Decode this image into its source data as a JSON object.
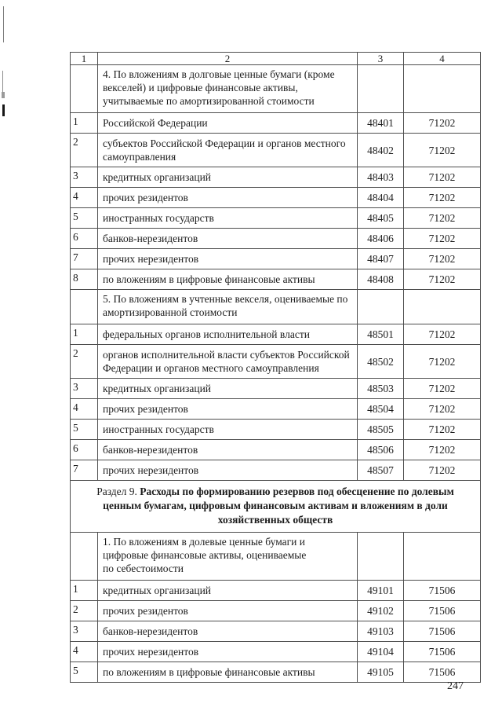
{
  "page": {
    "number": "247"
  },
  "colors": {
    "ink": "#1c1c1c",
    "border": "#4e4e4e",
    "background": "#ffffff"
  },
  "table": {
    "columns": [
      "1",
      "2",
      "3",
      "4"
    ],
    "body": [
      {
        "type": "subheader",
        "text": "4. По вложениям в долговые ценные бумаги (кроме\nвекселей) и цифровые финансовые активы,\nучитываемые по амортизированной стоимости"
      },
      {
        "type": "row",
        "num": "1",
        "label": "Российской Федерации",
        "col3": "48401",
        "col4": "71202"
      },
      {
        "type": "row",
        "num": "2",
        "label": "субъектов Российской Федерации и органов местного\nсамоуправления",
        "col3": "48402",
        "col4": "71202"
      },
      {
        "type": "row",
        "num": "3",
        "label": "кредитных организаций",
        "col3": "48403",
        "col4": "71202"
      },
      {
        "type": "row",
        "num": "4",
        "label": "прочих резидентов",
        "col3": "48404",
        "col4": "71202"
      },
      {
        "type": "row",
        "num": "5",
        "label": "иностранных государств",
        "col3": "48405",
        "col4": "71202"
      },
      {
        "type": "row",
        "num": "6",
        "label": "банков-нерезидентов",
        "col3": "48406",
        "col4": "71202"
      },
      {
        "type": "row",
        "num": "7",
        "label": "прочих нерезидентов",
        "col3": "48407",
        "col4": "71202"
      },
      {
        "type": "row",
        "num": "8",
        "label": "по вложениям в цифровые финансовые активы",
        "col3": "48408",
        "col4": "71202"
      },
      {
        "type": "subheader",
        "text": "5. По вложениям в учтенные векселя, оцениваемые по\nамортизированной стоимости"
      },
      {
        "type": "row",
        "num": "1",
        "label": "федеральных органов исполнительной власти",
        "col3": "48501",
        "col4": "71202"
      },
      {
        "type": "row",
        "num": "2",
        "label": "органов исполнительной власти субъектов Российской\nФедерации и органов местного самоуправления",
        "col3": "48502",
        "col4": "71202"
      },
      {
        "type": "row",
        "num": "3",
        "label": "кредитных организаций",
        "col3": "48503",
        "col4": "71202"
      },
      {
        "type": "row",
        "num": "4",
        "label": "прочих резидентов",
        "col3": "48504",
        "col4": "71202"
      },
      {
        "type": "row",
        "num": "5",
        "label": "иностранных государств",
        "col3": "48505",
        "col4": "71202"
      },
      {
        "type": "row",
        "num": "6",
        "label": "банков-нерезидентов",
        "col3": "48506",
        "col4": "71202"
      },
      {
        "type": "row",
        "num": "7",
        "label": "прочих нерезидентов",
        "col3": "48507",
        "col4": "71202"
      },
      {
        "type": "section",
        "prefix": "Раздел 9. ",
        "bold": "Расходы по формированию резервов под обесценение по долевым ценным бумагам, цифровым финансовым активам и вложениям в доли хозяйственных обществ"
      },
      {
        "type": "subheader",
        "text": "1. По вложениям в долевые ценные бумаги и\nцифровые финансовые активы, оцениваемые\nпо себестоимости"
      },
      {
        "type": "row",
        "num": "1",
        "label": "кредитных организаций",
        "col3": "49101",
        "col4": "71506"
      },
      {
        "type": "row",
        "num": "2",
        "label": "прочих резидентов",
        "col3": "49102",
        "col4": "71506"
      },
      {
        "type": "row",
        "num": "3",
        "label": "банков-нерезидентов",
        "col3": "49103",
        "col4": "71506"
      },
      {
        "type": "row",
        "num": "4",
        "label": "прочих нерезидентов",
        "col3": "49104",
        "col4": "71506"
      },
      {
        "type": "row",
        "num": "5",
        "label": "по вложениям в цифровые финансовые активы",
        "col3": "49105",
        "col4": "71506"
      }
    ]
  }
}
